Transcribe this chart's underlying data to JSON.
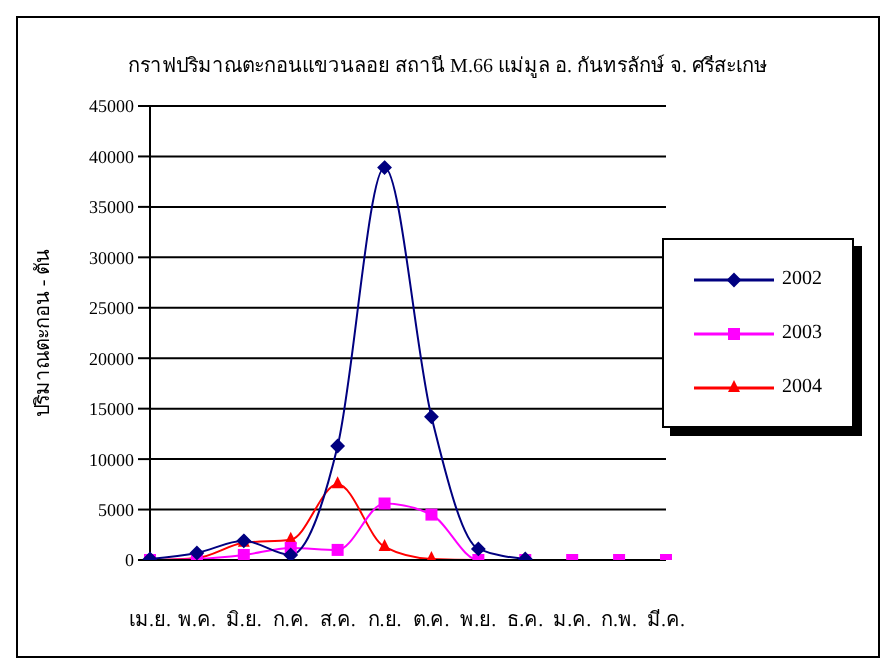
{
  "chart_data": {
    "type": "line",
    "title": "กราฟปริมาณตะกอนแขวนลอย สถานี M.66 แม่มูล อ. กันทรลักษ์ จ. ศรีสะเกษ",
    "ylabel": "ปริมาณตะกอน - ตัน",
    "categories": [
      "เม.ย.",
      "พ.ค.",
      "มิ.ย.",
      "ก.ค.",
      "ส.ค.",
      "ก.ย.",
      "ต.ค.",
      "พ.ย.",
      "ธ.ค.",
      "ม.ค.",
      "ก.พ.",
      "มี.ค."
    ],
    "series": [
      {
        "name": "2002",
        "color": "#000080",
        "marker": "diamond",
        "values": [
          100,
          700,
          1900,
          500,
          11300,
          38900,
          14200,
          1100,
          100,
          null,
          null,
          null
        ]
      },
      {
        "name": "2003",
        "color": "#ff00ff",
        "marker": "square",
        "values": [
          0,
          100,
          500,
          1200,
          1000,
          5600,
          4500,
          0,
          0,
          0,
          0,
          0
        ]
      },
      {
        "name": "2004",
        "color": "#ff0000",
        "marker": "triangle",
        "values": [
          0,
          200,
          1700,
          2000,
          7500,
          1300,
          100,
          0,
          0,
          null,
          null,
          null
        ]
      }
    ],
    "ylim": [
      0,
      45000
    ],
    "yticks": [
      0,
      5000,
      10000,
      15000,
      20000,
      25000,
      30000,
      35000,
      40000,
      45000
    ],
    "grid": "y",
    "legend": "right"
  }
}
